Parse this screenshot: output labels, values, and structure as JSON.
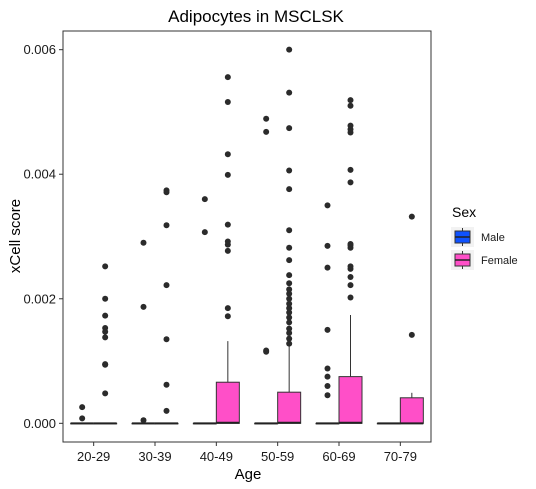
{
  "chart_data": {
    "type": "boxplot",
    "title": "Adipocytes in MSCLSK",
    "xlabel": "Age",
    "ylabel": "xCell score",
    "categories": [
      "20-29",
      "30-39",
      "40-49",
      "50-59",
      "60-69",
      "70-79"
    ],
    "ylim": [
      -0.0003,
      0.0063
    ],
    "yticks": [
      "0.000",
      "0.002",
      "0.004",
      "0.006"
    ],
    "legend": {
      "title": "Sex",
      "position": "right",
      "entries": [
        "Male",
        "Female"
      ]
    },
    "grid": false,
    "series": [
      {
        "name": "Male",
        "color": "#0F52FF",
        "boxes": [
          {
            "q1": 0,
            "median": 0,
            "q3": 0,
            "whisker_low": 0,
            "whisker_high": 0,
            "outliers": [
              8e-05,
              0.00026
            ]
          },
          {
            "q1": 0,
            "median": 0,
            "q3": 0,
            "whisker_low": 0,
            "whisker_high": 0,
            "outliers": [
              5e-05,
              0.00187,
              0.0029
            ]
          },
          {
            "q1": 0,
            "median": 0,
            "q3": 0,
            "whisker_low": 0,
            "whisker_high": 0,
            "outliers": [
              0.00307,
              0.0036
            ]
          },
          {
            "q1": 0,
            "median": 0,
            "q3": 0,
            "whisker_low": 0,
            "whisker_high": 0,
            "outliers": [
              0.00115,
              0.00117,
              0.00468,
              0.00489
            ]
          },
          {
            "q1": 0,
            "median": 0,
            "q3": 0,
            "whisker_low": 0,
            "whisker_high": 0,
            "outliers": [
              0.00045,
              0.0006,
              0.00075,
              0.00088,
              0.0015,
              0.0025,
              0.00285,
              0.0035
            ]
          },
          {
            "q1": 0,
            "median": 0,
            "q3": 0,
            "whisker_low": 0,
            "whisker_high": 0,
            "outliers": []
          }
        ]
      },
      {
        "name": "Female",
        "color": "#FF4FC8",
        "boxes": [
          {
            "q1": 0,
            "median": 0,
            "q3": 0,
            "whisker_low": 0,
            "whisker_high": 0,
            "outliers": [
              0.00048,
              0.00094,
              0.00095,
              0.00138,
              0.00147,
              0.00153,
              0.00173,
              0.002,
              0.00252
            ]
          },
          {
            "q1": 0,
            "median": 0,
            "q3": 0,
            "whisker_low": 0,
            "whisker_high": 0,
            "outliers": [
              0.0002,
              0.00062,
              0.00135,
              0.00222,
              0.00318,
              0.00371,
              0.00374
            ]
          },
          {
            "q1": 0,
            "median": 1e-05,
            "q3": 0.00066,
            "whisker_low": 0,
            "whisker_high": 0.00132,
            "outliers": [
              0.00172,
              0.00185,
              0.00277,
              0.00287,
              0.00292,
              0.00319,
              0.00399,
              0.00432,
              0.00516,
              0.00556
            ]
          },
          {
            "q1": 0,
            "median": 1e-05,
            "q3": 0.0005,
            "whisker_low": 0,
            "whisker_high": 0.00125,
            "outliers": [
              0.00128,
              0.00136,
              0.00145,
              0.00152,
              0.00162,
              0.0017,
              0.00178,
              0.00185,
              0.00192,
              0.002,
              0.00208,
              0.00215,
              0.00225,
              0.00238,
              0.00262,
              0.00282,
              0.0031,
              0.00376,
              0.00406,
              0.00474,
              0.00531,
              0.006
            ]
          },
          {
            "q1": 0,
            "median": 1e-05,
            "q3": 0.00075,
            "whisker_low": 0,
            "whisker_high": 0.00174,
            "outliers": [
              0.00202,
              0.00222,
              0.00235,
              0.00248,
              0.00252,
              0.00282,
              0.00286,
              0.00288,
              0.00387,
              0.00407,
              0.00467,
              0.00472,
              0.00478,
              0.0051,
              0.00519
            ]
          },
          {
            "q1": 0,
            "median": 0,
            "q3": 0.00041,
            "whisker_low": 0,
            "whisker_high": 0.00049,
            "outliers": [
              0.00142,
              0.00332
            ]
          }
        ]
      }
    ]
  }
}
